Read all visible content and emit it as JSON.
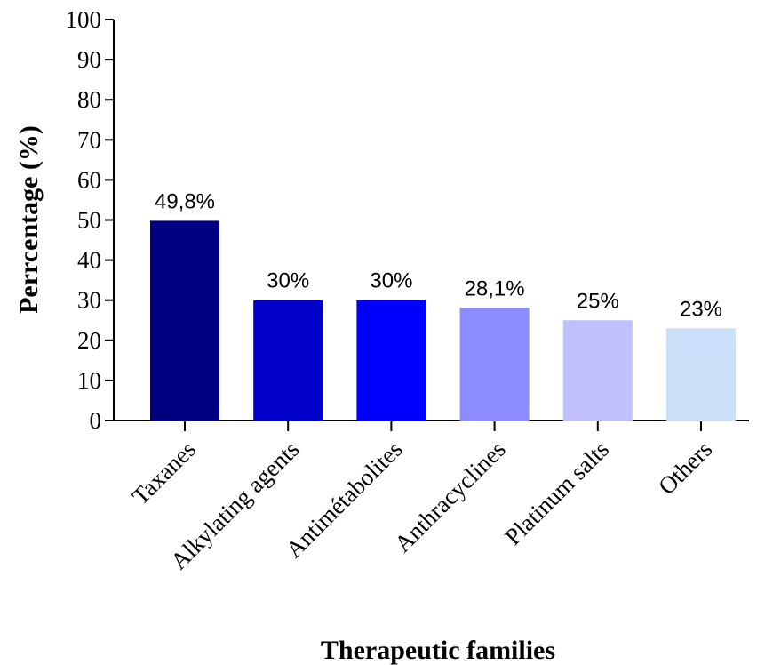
{
  "chart_data": {
    "type": "bar",
    "xlabel": "Therapeutic families",
    "ylabel": "Perrcentage (%)",
    "ylim": [
      0,
      100
    ],
    "yticks": [
      0,
      10,
      20,
      30,
      40,
      50,
      60,
      70,
      80,
      90,
      100
    ],
    "categories": [
      "Taxanes",
      "Alkylating agents",
      "Antimétabolites",
      "Anthracyclines",
      "Platinum salts",
      "Others"
    ],
    "values": [
      49.8,
      30,
      30,
      28.1,
      25,
      23
    ],
    "data_labels": [
      "49,8%",
      "30%",
      "30%",
      "28,1%",
      "25%",
      "23%"
    ],
    "colors": [
      "#000080",
      "#0000c8",
      "#0000ff",
      "#8c8cff",
      "#c0c0ff",
      "#cadff8"
    ],
    "grid": false,
    "legend": "none"
  }
}
